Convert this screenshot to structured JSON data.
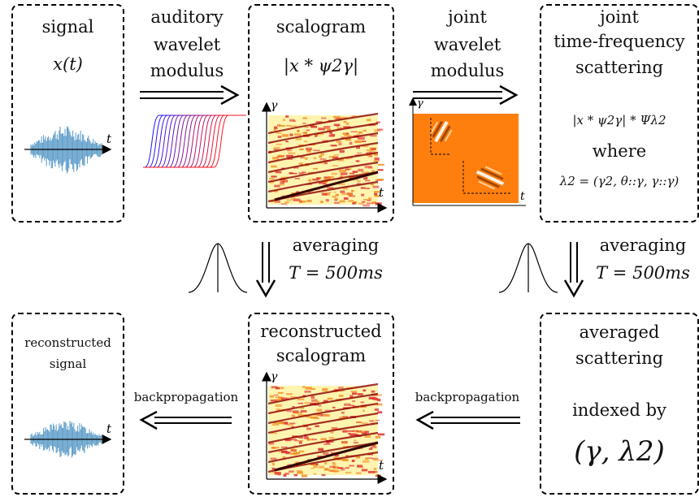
{
  "boxes": {
    "signal": {
      "title": "signal",
      "formula": "x(t)"
    },
    "scalogram": {
      "title": "scalogram",
      "formula": "|x * ψ2γ|"
    },
    "joint_scattering": {
      "title_line1": "joint",
      "title_line2": "time-frequency",
      "title_line3": "scattering",
      "formula": "|x * ψ2γ| * Ψλ2",
      "where": "where",
      "lambda_def": "λ2 = (γ2, θ::γ, γ::γ)"
    },
    "reconstructed_signal": {
      "line1": "reconstructed",
      "line2": "signal"
    },
    "reconstructed_scalogram": {
      "line1": "reconstructed",
      "line2": "scalogram"
    },
    "averaged_scattering": {
      "line1": "averaged",
      "line2": "scattering",
      "line3": "indexed by",
      "index": "(γ, λ2)"
    }
  },
  "arrows": {
    "auditory": {
      "line1": "auditory",
      "line2": "wavelet",
      "line3": "modulus"
    },
    "joint_wavelet": {
      "line1": "joint",
      "line2": "wavelet",
      "line3": "modulus"
    },
    "averaging_left": {
      "line1": "averaging",
      "line2": "T = 500ms"
    },
    "averaging_right": {
      "line1": "averaging",
      "line2": "T = 500ms"
    },
    "backprop_left": "backpropagation",
    "backprop_right": "backpropagation"
  },
  "axes": {
    "t": "t",
    "gamma": "γ",
    "tstar": "t"
  },
  "colors": {
    "wave_blue": "#1f77b4",
    "scalogram_bg": "#fff4b0",
    "joint_bg": "#ff7f0e"
  }
}
